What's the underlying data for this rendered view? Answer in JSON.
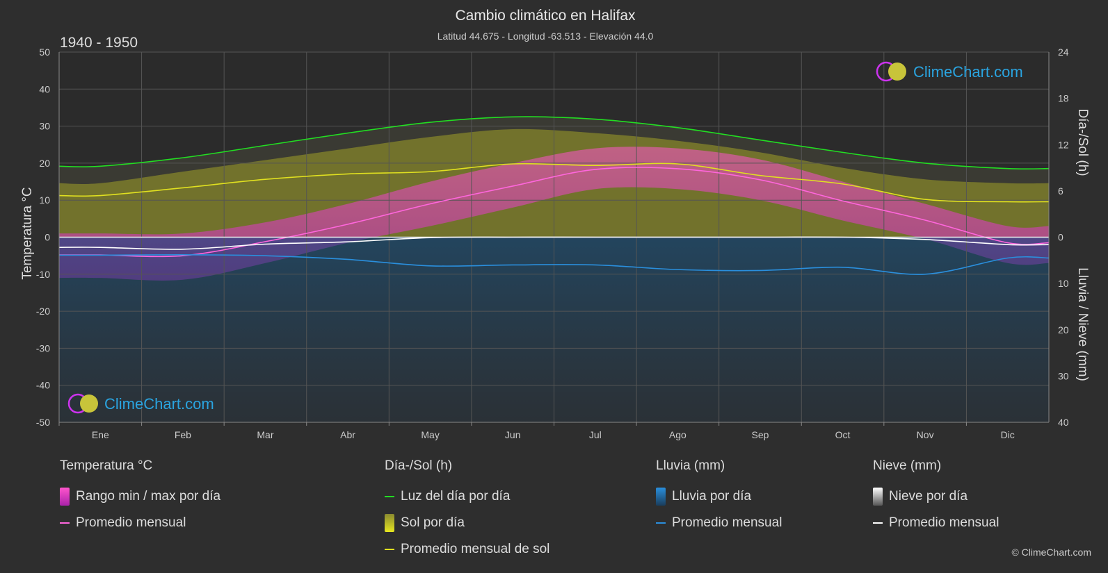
{
  "chart_data": {
    "type": "line",
    "title": "Cambio climático en Halifax",
    "subtitle": "Latitud 44.675 - Longitud -63.513 - Elevación 44.0",
    "period": "1940 - 1950",
    "watermark": "ClimeChart.com",
    "copyright": "© ClimeChart.com",
    "x_categories": [
      "Ene",
      "Feb",
      "Mar",
      "Abr",
      "May",
      "Jun",
      "Jul",
      "Ago",
      "Sep",
      "Oct",
      "Nov",
      "Dic"
    ],
    "y_left": {
      "label": "Temperatura °C",
      "min": -50,
      "max": 50,
      "ticks": [
        50,
        40,
        30,
        20,
        10,
        0,
        -10,
        -20,
        -30,
        -40,
        -50
      ]
    },
    "y_right_top": {
      "label": "Día-/Sol (h)",
      "min": 0,
      "max": 24,
      "ticks": [
        24,
        18,
        12,
        6,
        0
      ]
    },
    "y_right_bottom": {
      "label": "Lluvia / Nieve (mm)",
      "min": 0,
      "max": 40,
      "ticks": [
        10,
        20,
        30,
        40
      ]
    },
    "grid": true,
    "series": [
      {
        "name": "Luz del día por día",
        "axis": "hours",
        "color": "#22dd22",
        "values": [
          9.2,
          10.3,
          11.9,
          13.5,
          14.9,
          15.6,
          15.3,
          14.2,
          12.6,
          11.0,
          9.6,
          8.9
        ]
      },
      {
        "name": "Promedio mensual de sol",
        "axis": "hours",
        "color": "#e0e020",
        "values": [
          5.4,
          6.4,
          7.5,
          8.2,
          8.5,
          9.5,
          9.3,
          9.5,
          8.0,
          6.9,
          4.9,
          4.6
        ]
      },
      {
        "name": "Promedio mensual",
        "group": "Temperatura °C",
        "axis": "temp",
        "color": "#ff66dd",
        "values": [
          -4.8,
          -5.0,
          -1.2,
          3.5,
          9.0,
          13.8,
          18.3,
          18.5,
          15.5,
          9.8,
          4.6,
          -1.5
        ]
      },
      {
        "name": "Promedio mensual",
        "group": "Nieve (mm)",
        "axis": "precip",
        "color": "#ffffff",
        "values": [
          2.2,
          2.6,
          1.5,
          1.0,
          0.1,
          0.0,
          0.0,
          0.0,
          0.0,
          0.0,
          0.5,
          1.6
        ]
      },
      {
        "name": "Promedio mensual",
        "group": "Lluvia (mm)",
        "axis": "precip",
        "color": "#2a8fdd",
        "values": [
          3.9,
          3.8,
          4.0,
          4.8,
          6.2,
          6.0,
          6.0,
          7.0,
          7.2,
          6.5,
          8.0,
          4.5
        ]
      }
    ],
    "daily_bands": {
      "daylight_hours": [
        9.2,
        10.3,
        11.9,
        13.5,
        14.9,
        15.6,
        15.3,
        14.2,
        12.6,
        11.0,
        9.6,
        8.9
      ],
      "sun_hours_band": [
        7.0,
        8.5,
        10.0,
        11.5,
        13.0,
        14.0,
        13.5,
        12.5,
        11.0,
        9.0,
        7.5,
        7.0
      ],
      "temp_max": [
        1.0,
        1.0,
        4.0,
        9.0,
        15.0,
        20.0,
        24.0,
        24.0,
        21.0,
        15.0,
        9.0,
        3.0
      ],
      "temp_min": [
        -11.0,
        -11.5,
        -7.0,
        -1.5,
        3.0,
        8.0,
        13.0,
        13.0,
        10.0,
        4.5,
        -0.5,
        -7.0
      ]
    }
  },
  "legend": {
    "groups": [
      {
        "title": "Temperatura °C",
        "items": [
          {
            "label": "Rango min / max por día",
            "kind": "block",
            "color": "#dd22dd"
          },
          {
            "label": "Promedio mensual",
            "kind": "line",
            "color": "#ff66dd"
          }
        ]
      },
      {
        "title": "Día-/Sol (h)",
        "items": [
          {
            "label": "Luz del día por día",
            "kind": "line",
            "color": "#22dd22"
          },
          {
            "label": "Sol por día",
            "kind": "block",
            "color": "#d6d62a"
          },
          {
            "label": "Promedio mensual de sol",
            "kind": "line",
            "color": "#e0e020"
          }
        ]
      },
      {
        "title": "Lluvia (mm)",
        "items": [
          {
            "label": "Lluvia por día",
            "kind": "block",
            "color": "#2a8fdd"
          },
          {
            "label": "Promedio mensual",
            "kind": "line",
            "color": "#2a8fdd"
          }
        ]
      },
      {
        "title": "Nieve (mm)",
        "items": [
          {
            "label": "Nieve por día",
            "kind": "block",
            "color": "#dddddd"
          },
          {
            "label": "Promedio mensual",
            "kind": "line",
            "color": "#ffffff"
          }
        ]
      }
    ]
  }
}
